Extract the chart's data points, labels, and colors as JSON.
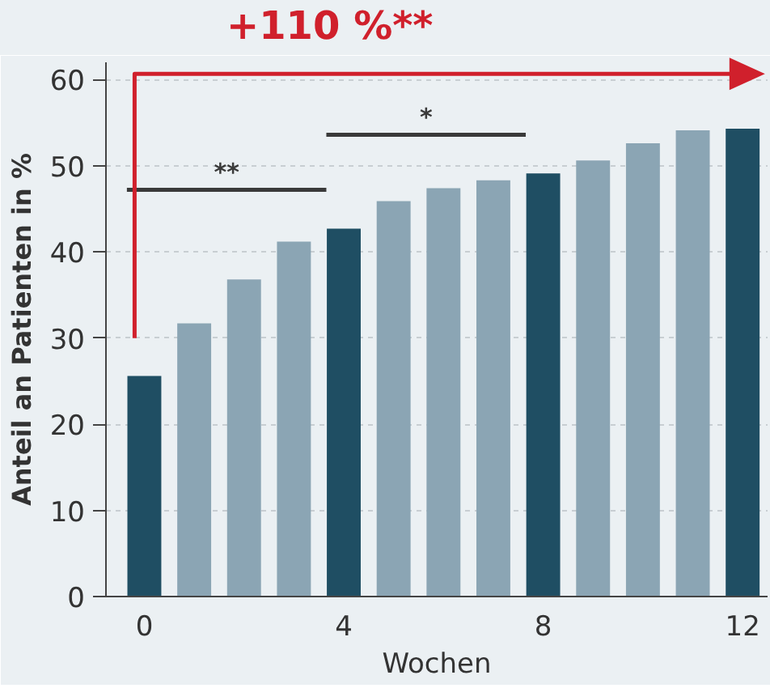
{
  "chart_data": {
    "type": "bar",
    "xlabel": "Wochen",
    "ylabel": "Anteil an Patienten in %",
    "x": [
      0,
      1,
      2,
      3,
      4,
      5,
      6,
      7,
      8,
      9,
      10,
      11,
      12
    ],
    "values": [
      25.6,
      31.7,
      36.8,
      41.2,
      42.7,
      45.9,
      47.4,
      48.3,
      49.1,
      50.6,
      52.6,
      54.1,
      54.3
    ],
    "colors": [
      "#1f4e63",
      "#8ba5b4",
      "#8ba5b4",
      "#8ba5b4",
      "#1f4e63",
      "#8ba5b4",
      "#8ba5b4",
      "#8ba5b4",
      "#1f4e63",
      "#8ba5b4",
      "#8ba5b4",
      "#8ba5b4",
      "#1f4e63"
    ],
    "xlim": [
      -0.77,
      12.5
    ],
    "xticks": [
      0,
      4,
      8,
      12
    ],
    "ylim": [
      0,
      62
    ],
    "yticks": [
      0,
      10,
      20,
      30,
      40,
      50,
      60
    ],
    "grid": "y",
    "annotations": [
      "+110 %**",
      "**",
      "*"
    ]
  }
}
